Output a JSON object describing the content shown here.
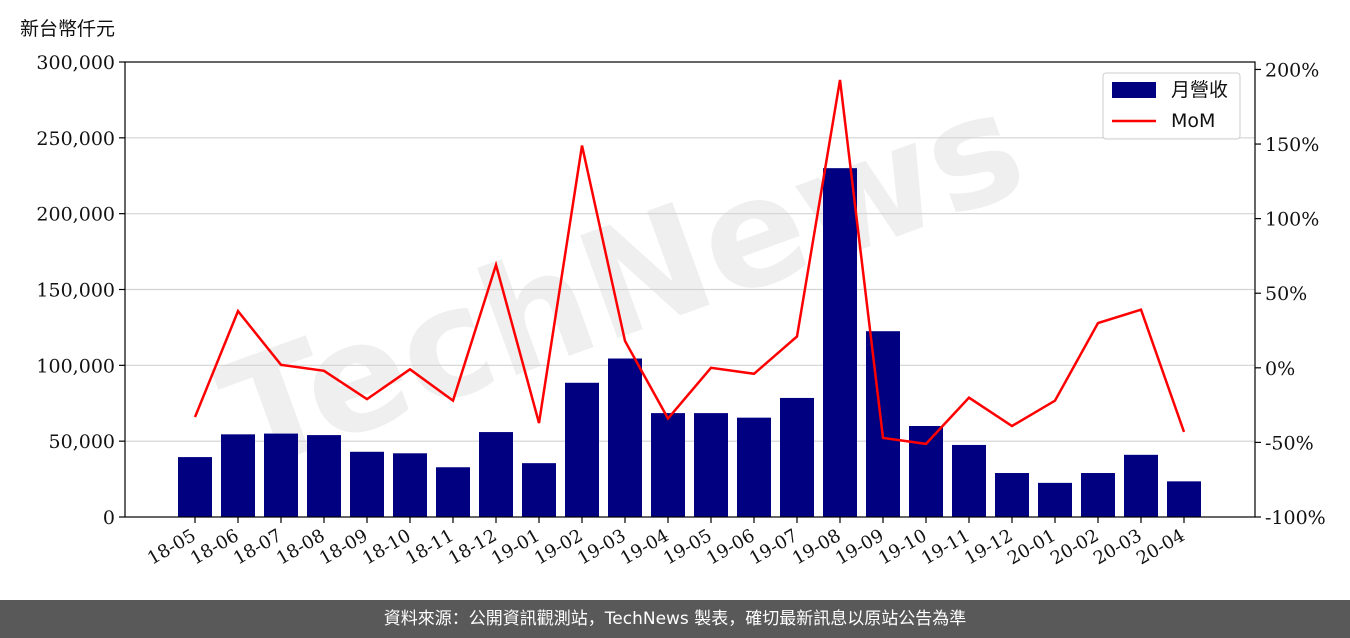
{
  "watermark": "TechNews",
  "y_unit_label": "新台幣仟元",
  "footer_text": "資料來源：公開資訊觀測站，TechNews 製表，確切最新訊息以原站公告為準",
  "colors": {
    "bar": "#000080",
    "line": "#ff0000",
    "grid": "#d3d3d3",
    "footer_bg": "#595959"
  },
  "chart_data": {
    "type": "bar",
    "categories": [
      "18-05",
      "18-06",
      "18-07",
      "18-08",
      "18-09",
      "18-10",
      "18-11",
      "18-12",
      "19-01",
      "19-02",
      "19-03",
      "19-04",
      "19-05",
      "19-06",
      "19-07",
      "19-08",
      "19-09",
      "19-10",
      "19-11",
      "19-12",
      "20-01",
      "20-02",
      "20-03",
      "20-04"
    ],
    "series": [
      {
        "name": "月營收",
        "type": "bar",
        "axis": "left",
        "values": [
          39500,
          54500,
          55000,
          54000,
          43000,
          42000,
          32800,
          56000,
          35500,
          88500,
          104500,
          68500,
          68500,
          65500,
          78500,
          230000,
          122500,
          60000,
          47500,
          29000,
          22500,
          29000,
          41000,
          23500
        ]
      },
      {
        "name": "MoM",
        "type": "line",
        "axis": "right",
        "values": [
          -33,
          38,
          2,
          -2,
          -21,
          -1,
          -22,
          69,
          -37,
          149,
          18,
          -34,
          0,
          -4,
          21,
          193,
          -47,
          -51,
          -20,
          -39,
          -22,
          30,
          39,
          -43
        ]
      }
    ],
    "y_left": {
      "min": 0,
      "max": 300000,
      "ticks": [
        "0",
        "50,000",
        "100,000",
        "150,000",
        "200,000",
        "250,000",
        "300,000"
      ]
    },
    "y_right": {
      "min": -100,
      "max": 205,
      "ticks": [
        "-100%",
        "-50%",
        "0%",
        "50%",
        "100%",
        "150%",
        "200%"
      ]
    },
    "grid": "horizontal",
    "legend_position": "top-right"
  }
}
